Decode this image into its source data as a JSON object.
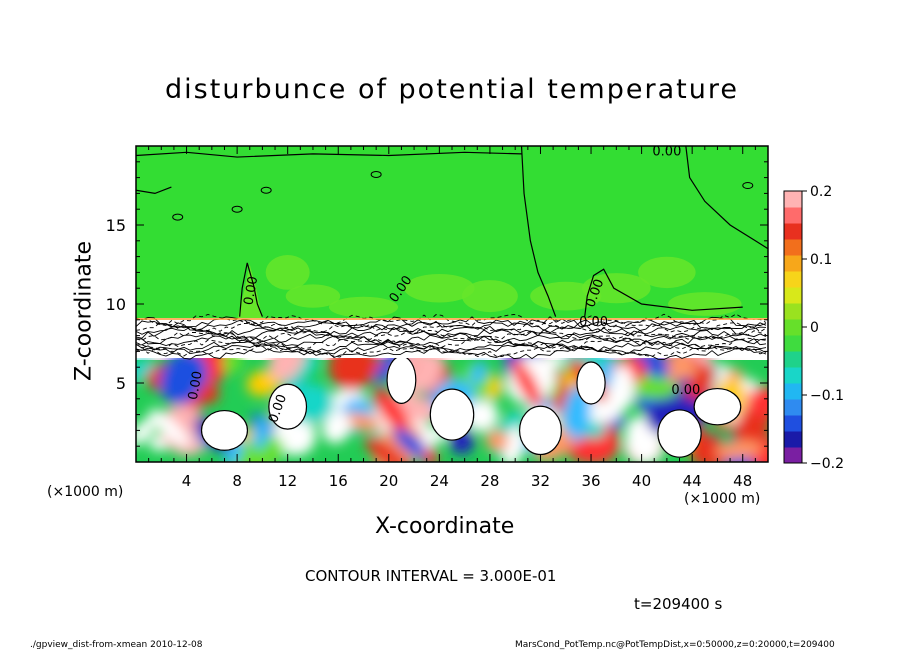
{
  "title": "disturbunce of potential temperature",
  "contour_interval": "CONTOUR INTERVAL = 3.000E-01",
  "time_label": "t=209400 s",
  "footer_left": "./gpview_dist-from-xmean  2010-12-08",
  "footer_right": "MarsCond_PotTemp.nc@PotTempDist,x=0:50000,z=0:20000,t=209400",
  "chart_data": {
    "type": "heatmap",
    "title": "disturbunce of potential temperature",
    "xlabel": "X-coordinate",
    "ylabel": "Z-coordinate",
    "x_unit_label": "(×1000 m)",
    "xlim": [
      0,
      50
    ],
    "ylim": [
      0,
      20
    ],
    "x_ticks": [
      4,
      8,
      12,
      16,
      20,
      24,
      28,
      32,
      36,
      40,
      44,
      48
    ],
    "y_ticks": [
      5,
      10,
      15
    ],
    "colorbar": {
      "range": [
        -0.2,
        0.2
      ],
      "ticks": [
        0.2,
        0.1,
        0,
        -0.1,
        -0.2
      ],
      "tick_labels": [
        "0.2",
        "0.1",
        "0",
        "−0.1",
        "−0.2"
      ],
      "colors": [
        "#7a1fa2",
        "#1a1aa8",
        "#1f4fe0",
        "#2f8bf0",
        "#21b7f2",
        "#19d6c8",
        "#1fd28a",
        "#3fdc3f",
        "#66e02a",
        "#9ae21f",
        "#d8e81a",
        "#f7d41a",
        "#f7a71a",
        "#f26f1c",
        "#e8301f",
        "#ff6b6b",
        "#ffb3b3"
      ]
    },
    "contour_labels": [
      "0.00",
      "0.00",
      "0.00",
      "0.00",
      "0.00",
      "0.00",
      "0.00",
      "0.00"
    ],
    "regions": {
      "upper_layer_z": [
        9,
        20
      ],
      "upper_value": 0.0,
      "transition_z": [
        7,
        9
      ],
      "lower_layer_z": [
        0,
        7
      ]
    },
    "contour_interval": 0.3,
    "time_s": 209400
  },
  "colors": {
    "upper_green": "#33dd33",
    "light_green": "#66e62a",
    "white": "#ffffff"
  }
}
